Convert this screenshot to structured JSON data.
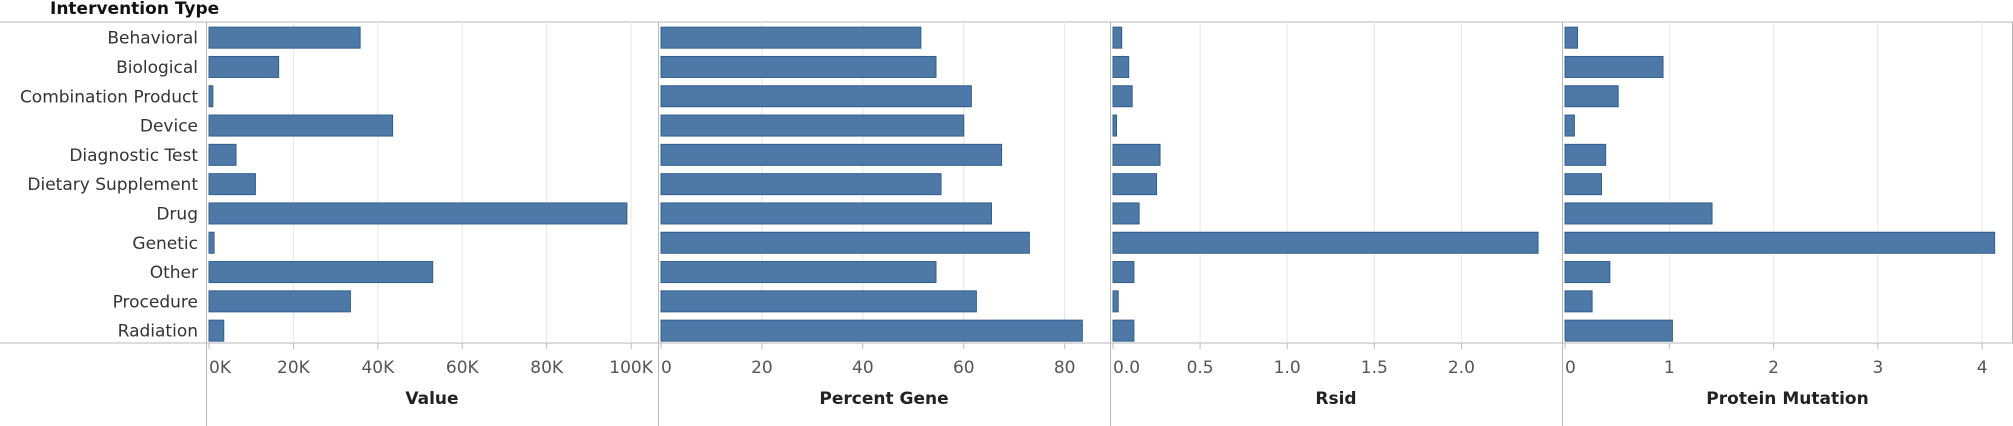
{
  "header": {
    "row_title": "Intervention Type"
  },
  "colors": {
    "bar": "#4e79a7",
    "bar_stroke": "#2f5f8f",
    "grid": "#e6e6e6",
    "axis": "#bdbdbd",
    "border": "#b8b8b8"
  },
  "chart_data": [
    {
      "type": "bar",
      "orientation": "horizontal",
      "xlabel": "Value",
      "categories": [
        "Behavioral",
        "Biological",
        "Combination Product",
        "Device",
        "Diagnostic Test",
        "Dietary Supplement",
        "Drug",
        "Genetic",
        "Other",
        "Procedure",
        "Radiation"
      ],
      "values": [
        35800,
        16500,
        900,
        43500,
        6400,
        11000,
        99000,
        1200,
        53000,
        33500,
        3500
      ],
      "xlim": [
        0,
        104000
      ],
      "ticks": [
        0,
        20000,
        40000,
        60000,
        80000,
        100000
      ],
      "tick_labels": [
        "0K",
        "20K",
        "40K",
        "60K",
        "80K",
        "100K"
      ]
    },
    {
      "type": "bar",
      "orientation": "horizontal",
      "xlabel": "Percent Gene",
      "categories": [
        "Behavioral",
        "Biological",
        "Combination Product",
        "Device",
        "Diagnostic Test",
        "Dietary Supplement",
        "Drug",
        "Genetic",
        "Other",
        "Procedure",
        "Radiation"
      ],
      "values": [
        51.5,
        54.5,
        61.5,
        60.0,
        67.5,
        55.5,
        65.5,
        73.0,
        54.5,
        62.5,
        83.5
      ],
      "xlim": [
        0,
        87
      ],
      "ticks": [
        0,
        20,
        40,
        60,
        80
      ],
      "tick_labels": [
        "0",
        "20",
        "40",
        "60",
        "80"
      ]
    },
    {
      "type": "bar",
      "orientation": "horizontal",
      "xlabel": "Rsid",
      "categories": [
        "Behavioral",
        "Biological",
        "Combination Product",
        "Device",
        "Diagnostic Test",
        "Dietary Supplement",
        "Drug",
        "Genetic",
        "Other",
        "Procedure",
        "Radiation"
      ],
      "values": [
        0.05,
        0.09,
        0.11,
        0.02,
        0.27,
        0.25,
        0.15,
        2.44,
        0.12,
        0.03,
        0.12
      ],
      "xlim": [
        0,
        2.52
      ],
      "ticks": [
        0,
        0.5,
        1.0,
        1.5,
        2.0
      ],
      "tick_labels": [
        "0.0",
        "0.5",
        "1.0",
        "1.5",
        "2.0"
      ]
    },
    {
      "type": "bar",
      "orientation": "horizontal",
      "xlabel": "Protein Mutation",
      "categories": [
        "Behavioral",
        "Biological",
        "Combination Product",
        "Device",
        "Diagnostic Test",
        "Dietary Supplement",
        "Drug",
        "Genetic",
        "Other",
        "Procedure",
        "Radiation"
      ],
      "values": [
        0.12,
        0.94,
        0.51,
        0.09,
        0.39,
        0.35,
        1.41,
        4.12,
        0.43,
        0.26,
        1.03
      ],
      "xlim": [
        0,
        4.2
      ],
      "ticks": [
        0,
        1,
        2,
        3,
        4
      ],
      "tick_labels": [
        "0",
        "1",
        "2",
        "3",
        "4"
      ]
    }
  ]
}
